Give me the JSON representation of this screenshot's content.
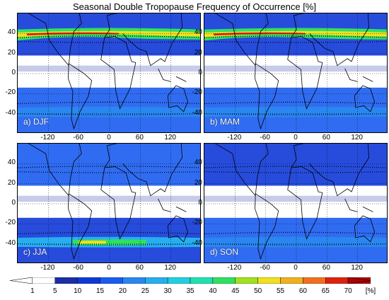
{
  "title": "Seasonal Double Tropopause Frequency of Occurrence [%]",
  "panels": [
    {
      "label": "a) DJF"
    },
    {
      "label": "b) MAM"
    },
    {
      "label": "c) JJA"
    },
    {
      "label": "d) SON"
    }
  ],
  "lat_ticks": [
    "40",
    "20",
    "0",
    "-20",
    "-40"
  ],
  "lon_ticks": [
    "-120",
    "-60",
    "0",
    "60",
    "120"
  ],
  "colorbar": {
    "ticks": [
      "1",
      "5",
      "10",
      "15",
      "20",
      "25",
      "30",
      "35",
      "40",
      "45",
      "50",
      "55",
      "60",
      "65",
      "70"
    ],
    "unit": "[%]",
    "colors": [
      "#ffffff",
      "#1a2ea8",
      "#1038d8",
      "#1a5cf0",
      "#2a86f0",
      "#27aef0",
      "#20d0e0",
      "#20e0b0",
      "#30e060",
      "#a0e020",
      "#f0e020",
      "#f0b020",
      "#f07020",
      "#e02010",
      "#b00000"
    ]
  }
}
